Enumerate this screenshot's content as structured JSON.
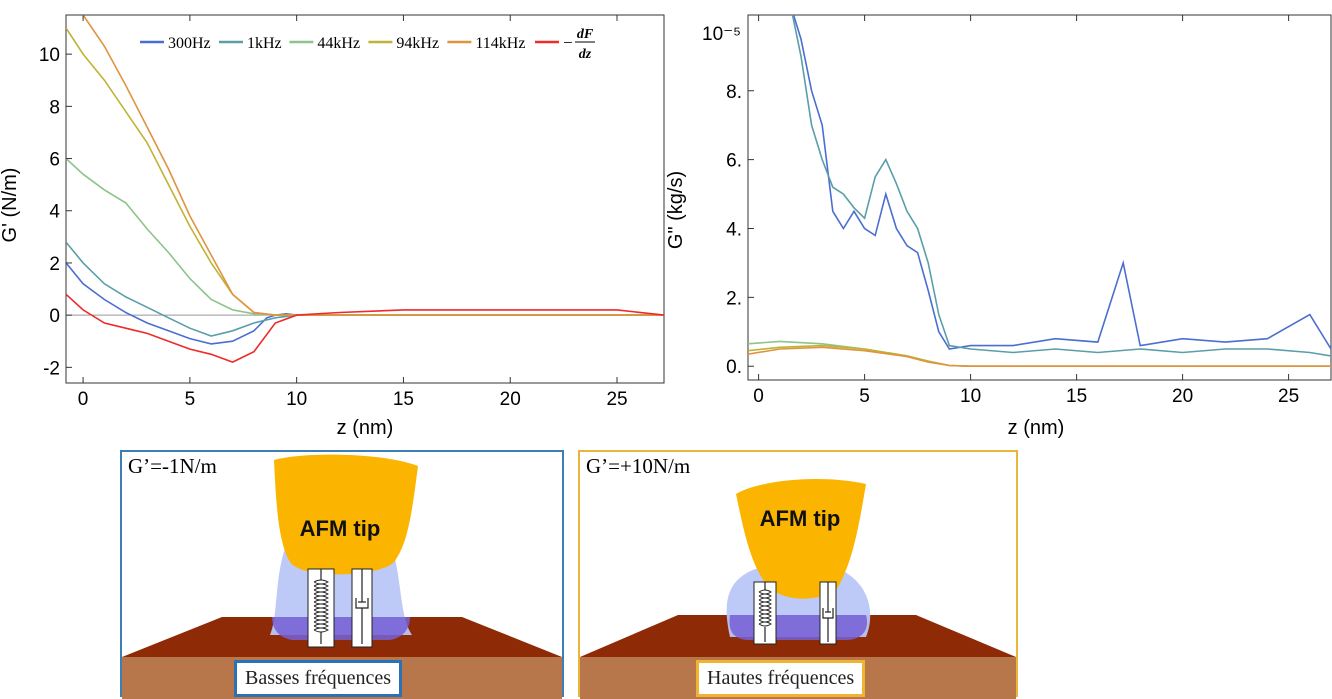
{
  "chart_data": [
    {
      "type": "line",
      "xlabel": "z (nm)",
      "ylabel": "G' (N/m)",
      "xlim": [
        -0.8,
        27.2
      ],
      "ylim": [
        -2.6,
        11.5
      ],
      "xticks": [
        0,
        5,
        10,
        15,
        20,
        25
      ],
      "yticks": [
        -2,
        0,
        2,
        4,
        6,
        8,
        10
      ],
      "zero_line": true,
      "legend_position": "top",
      "series": [
        {
          "name": "300Hz",
          "color": "#4a6fd0",
          "x": [
            -0.8,
            0,
            1,
            2,
            3,
            4,
            5,
            6,
            7,
            8,
            8.6,
            9,
            9.5,
            10,
            12,
            15,
            20,
            25,
            27.2
          ],
          "y": [
            2.0,
            1.2,
            0.6,
            0.1,
            -0.3,
            -0.6,
            -0.9,
            -1.1,
            -1.0,
            -0.6,
            -0.1,
            0.0,
            0.05,
            0.0,
            0.0,
            0.0,
            0.0,
            0.0,
            0.0
          ]
        },
        {
          "name": "1kHz",
          "color": "#5a9eaa",
          "x": [
            -0.8,
            0,
            1,
            2,
            3,
            4,
            5,
            6,
            7,
            8,
            9,
            10,
            12,
            15,
            20,
            25,
            27.2
          ],
          "y": [
            2.8,
            2.0,
            1.2,
            0.7,
            0.3,
            -0.1,
            -0.5,
            -0.8,
            -0.6,
            -0.3,
            -0.1,
            0.0,
            0.0,
            0.0,
            0.0,
            0.0,
            0.0
          ]
        },
        {
          "name": "44kHz",
          "color": "#8cc48a",
          "x": [
            -0.8,
            0,
            1,
            2,
            3,
            4,
            5,
            6,
            7,
            8,
            9,
            10,
            12,
            15,
            20,
            25,
            27.2
          ],
          "y": [
            6.0,
            5.4,
            4.8,
            4.3,
            3.3,
            2.4,
            1.4,
            0.6,
            0.2,
            0.05,
            0.0,
            0.0,
            0.0,
            0.0,
            0.0,
            0.0,
            0.0
          ]
        },
        {
          "name": "94kHz",
          "color": "#c0b334",
          "x": [
            -0.8,
            0,
            1,
            2,
            3,
            4,
            5,
            6,
            7,
            8,
            9,
            10,
            12,
            15,
            20,
            25,
            27.2
          ],
          "y": [
            11.0,
            10.0,
            9.0,
            7.8,
            6.6,
            5.0,
            3.4,
            2.0,
            0.8,
            0.1,
            0.0,
            0.0,
            0.0,
            0.0,
            0.0,
            0.0,
            0.0
          ]
        },
        {
          "name": "114kHz",
          "color": "#e09340",
          "x": [
            -0.8,
            0,
            1,
            2,
            3,
            4,
            5,
            6,
            7,
            8,
            9,
            10,
            12,
            15,
            20,
            25,
            27.2
          ],
          "y": [
            12.0,
            11.5,
            10.3,
            8.8,
            7.2,
            5.6,
            3.8,
            2.3,
            0.8,
            0.1,
            0.0,
            0.0,
            0.0,
            0.0,
            0.0,
            0.0,
            0.0
          ]
        },
        {
          "name": "−dF/dz",
          "legend_prefix": "−",
          "legend_num": "dF",
          "legend_den": "dz",
          "color": "#ee2a2a",
          "x": [
            -0.8,
            0,
            1,
            2,
            3,
            4,
            5,
            6,
            7,
            8,
            9,
            10,
            12,
            15,
            20,
            25,
            27.2
          ],
          "y": [
            0.8,
            0.2,
            -0.3,
            -0.5,
            -0.7,
            -1.0,
            -1.3,
            -1.5,
            -1.8,
            -1.4,
            -0.3,
            0.0,
            0.1,
            0.2,
            0.2,
            0.2,
            0.0
          ]
        }
      ]
    },
    {
      "type": "line",
      "xlabel": "z (nm)",
      "ylabel": "G\" (kg/s)",
      "exponent_label": "10⁻⁵",
      "xlim": [
        -0.5,
        27.0
      ],
      "ylim": [
        -0.4,
        10.2
      ],
      "xticks": [
        0,
        5,
        10,
        15,
        20,
        25
      ],
      "yticks": [
        0,
        2,
        4,
        6,
        8
      ],
      "ytick_labels": [
        "0.",
        "2.",
        "4.",
        "6.",
        "8."
      ],
      "series": [
        {
          "name": "300Hz",
          "color": "#4a6fd0",
          "x": [
            1.5,
            2,
            2.5,
            3,
            3.5,
            4,
            4.5,
            5,
            5.5,
            6,
            6.5,
            7,
            7.5,
            8,
            8.5,
            9,
            10,
            12,
            14,
            16,
            17.2,
            18,
            20,
            22,
            24,
            26,
            27
          ],
          "y": [
            10.5,
            9.5,
            8.0,
            7.0,
            4.5,
            4.0,
            4.5,
            4.0,
            3.8,
            5.0,
            4.0,
            3.5,
            3.3,
            2.2,
            1.0,
            0.5,
            0.6,
            0.6,
            0.8,
            0.7,
            3.0,
            0.6,
            0.8,
            0.7,
            0.8,
            1.5,
            0.5
          ]
        },
        {
          "name": "1kHz",
          "color": "#5a9eaa",
          "x": [
            1.5,
            2,
            2.5,
            3,
            3.5,
            4,
            4.5,
            5,
            5.5,
            6,
            6.5,
            7,
            7.5,
            8,
            8.5,
            9,
            10,
            12,
            14,
            16,
            18,
            20,
            22,
            24,
            26,
            27
          ],
          "y": [
            10.5,
            9.0,
            7.0,
            6.0,
            5.2,
            5.0,
            4.6,
            4.3,
            5.5,
            6.0,
            5.3,
            4.5,
            4.0,
            3.0,
            1.5,
            0.6,
            0.5,
            0.4,
            0.5,
            0.4,
            0.5,
            0.4,
            0.5,
            0.5,
            0.4,
            0.3
          ]
        },
        {
          "name": "44kHz",
          "color": "#8cc48a",
          "x": [
            -0.5,
            1,
            3,
            5,
            7,
            8,
            9,
            10,
            15,
            20,
            25,
            27
          ],
          "y": [
            0.65,
            0.72,
            0.65,
            0.5,
            0.3,
            0.15,
            0.02,
            0.0,
            0.0,
            0.0,
            0.0,
            0.0
          ]
        },
        {
          "name": "94kHz",
          "color": "#c0b334",
          "x": [
            -0.5,
            1,
            3,
            5,
            7,
            8,
            9,
            10,
            15,
            20,
            25,
            27
          ],
          "y": [
            0.45,
            0.55,
            0.6,
            0.5,
            0.3,
            0.15,
            0.02,
            0.0,
            0.0,
            0.0,
            0.0,
            0.0
          ]
        },
        {
          "name": "114kHz",
          "color": "#e09340",
          "x": [
            -0.5,
            1,
            3,
            5,
            7,
            8,
            9,
            10,
            15,
            20,
            25,
            27
          ],
          "y": [
            0.35,
            0.5,
            0.55,
            0.45,
            0.28,
            0.12,
            0.02,
            0.0,
            0.0,
            0.0,
            0.0,
            0.0
          ]
        }
      ]
    }
  ],
  "diagrams": [
    {
      "title": "G’=-1N/m",
      "tip_label": "AFM tip",
      "caption": "Basses fréquences",
      "border_color": "#3b7fb6",
      "caption_border_color": "#2a72b5"
    },
    {
      "title": "G’=+10N/m",
      "tip_label": "AFM tip",
      "caption": "Hautes fréquences",
      "border_color": "#e9b63a",
      "caption_border_color": "#f0b432"
    }
  ],
  "colors": {
    "tip": "#fbb400",
    "liquid_light": "#b9c6f5",
    "liquid_dark": "#7660d6",
    "substrate_top": "#8f2a06",
    "substrate_side": "#b7774b"
  }
}
